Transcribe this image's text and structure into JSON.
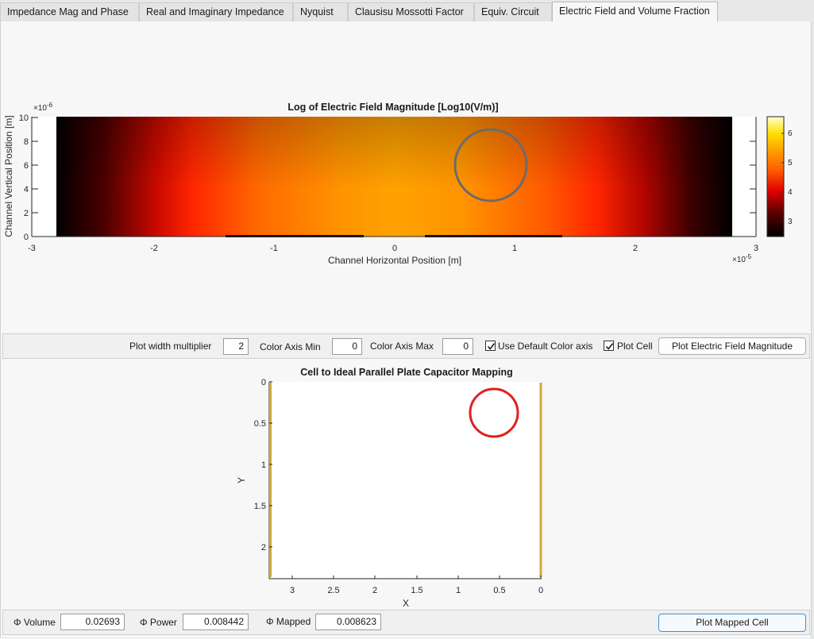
{
  "tabs": [
    {
      "label": "Impedance Mag and Phase",
      "active": false
    },
    {
      "label": "Real and Imaginary Impedance",
      "active": false
    },
    {
      "label": "Nyquist",
      "active": false
    },
    {
      "label": "Clausisu Mossotti Factor",
      "active": false
    },
    {
      "label": "Equiv. Circuit",
      "active": false
    },
    {
      "label": "Electric Field and Volume Fraction",
      "active": true
    }
  ],
  "field_plot": {
    "title": "Log of Electric Field Magnitude [Log10(V/m)]",
    "xlabel": "Channel Horizontal Position [m]",
    "ylabel": "Channel Vertical Position [m]",
    "x_exponent": "×10",
    "x_exponent_power": "-5",
    "y_exponent": "×10",
    "y_exponent_power": "-6",
    "x_ticks": [
      "-3",
      "-2",
      "-1",
      "0",
      "1",
      "2",
      "3"
    ],
    "y_ticks": [
      "0",
      "2",
      "4",
      "6",
      "8",
      "10"
    ],
    "colorbar_ticks": [
      "3",
      "4",
      "5",
      "6"
    ]
  },
  "controls": {
    "width_mult_label": "Plot width multiplier",
    "width_mult_value": "2",
    "caxis_min_label": "Color Axis Min",
    "caxis_min_value": "0",
    "caxis_max_label": "Color Axis Max",
    "caxis_max_value": "0",
    "default_caxis_label": "Use Default Color axis",
    "default_caxis_checked": true,
    "plot_cell_label": "Plot Cell",
    "plot_cell_checked": true,
    "plot_field_button": "Plot Electric Field Magnitude"
  },
  "mapping_plot": {
    "title": "Cell to Ideal Parallel Plate Capacitor Mapping",
    "xlabel": "X",
    "ylabel": "Y",
    "x_ticks": [
      "3",
      "2.5",
      "2",
      "1.5",
      "1",
      "0.5",
      "0"
    ],
    "y_ticks": [
      "0",
      "0.5",
      "1",
      "1.5",
      "2"
    ]
  },
  "bottom": {
    "volume_label": "Φ Volume",
    "volume_value": "0.02693",
    "power_label": "Φ Power",
    "power_value": "0.008442",
    "mapped_label": "Φ Mapped",
    "mapped_value": "0.008623",
    "plot_mapped_button": "Plot Mapped Cell"
  },
  "colors": {
    "cell_outline_top": "#6b6b6b",
    "cell_outline_bottom": "#e02020",
    "plate_color": "#d4a83a"
  }
}
